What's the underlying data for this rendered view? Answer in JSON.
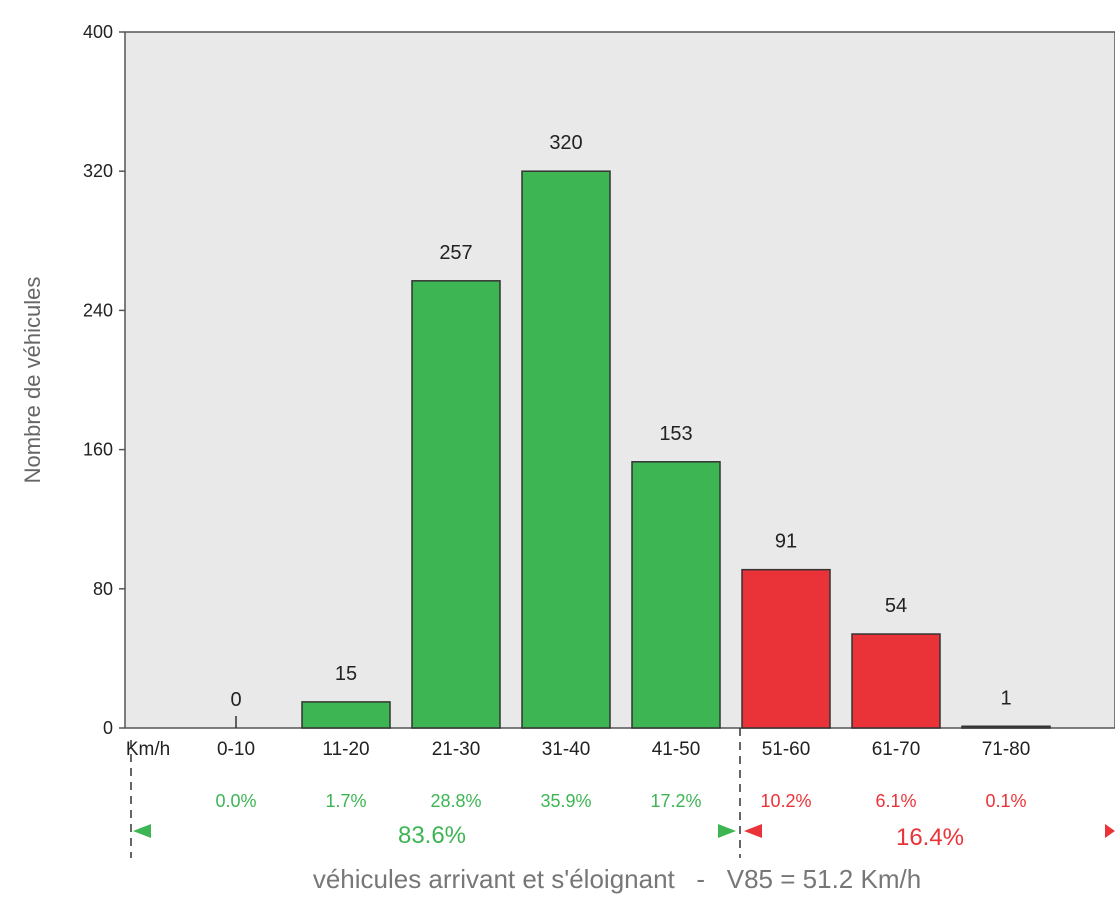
{
  "chart_data": {
    "type": "bar",
    "title": "",
    "ylabel": "Nombre de véhicules",
    "xlabel": "Km/h",
    "ylim": [
      0,
      400
    ],
    "yticks": [
      0,
      80,
      160,
      240,
      320,
      400
    ],
    "categories": [
      "0-10",
      "11-20",
      "21-30",
      "31-40",
      "41-50",
      "51-60",
      "61-70",
      "71-80"
    ],
    "values": [
      0,
      15,
      257,
      320,
      153,
      91,
      54,
      1
    ],
    "percentages": [
      "0.0%",
      "1.7%",
      "28.8%",
      "35.9%",
      "17.2%",
      "10.2%",
      "6.1%",
      "0.1%"
    ],
    "bar_colors": [
      "#3db553",
      "#3db553",
      "#3db553",
      "#3db553",
      "#3db553",
      "#ea3338",
      "#ea3338",
      "#555555"
    ],
    "pct_colors": [
      "#3db553",
      "#3db553",
      "#3db553",
      "#3db553",
      "#3db553",
      "#ea3338",
      "#ea3338",
      "#ea3338"
    ],
    "groups": [
      {
        "label": "83.6%",
        "color": "#3db553"
      },
      {
        "label": "16.4%",
        "color": "#ea3338"
      }
    ],
    "footer": "véhicules arrivant et s'éloignant   -   V85 = 51.2 Km/h",
    "plot_background": "#e9e9e9",
    "grid": false
  }
}
